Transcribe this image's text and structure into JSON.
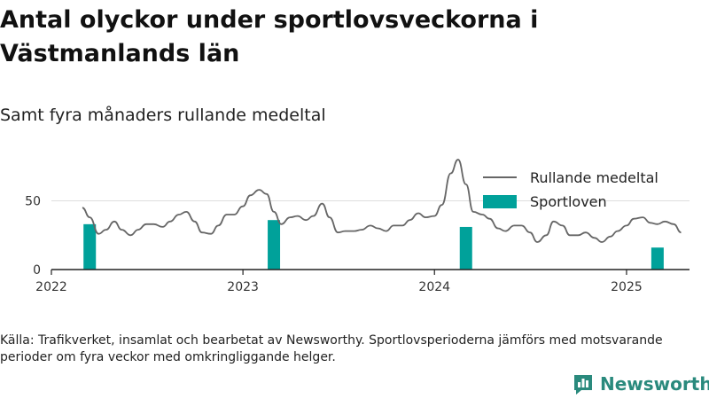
{
  "title": "Antal olyckor under sportlovsveckorna i Västmanlands län",
  "subtitle": "Samt fyra månaders rullande medeltal",
  "source": "Källa: Trafikverket, insamlat och bearbetat av Newsworthy. Sportlovsperioderna jämförs med motsvarande perioder om fyra veckor med omkringliggande helger.",
  "brand": {
    "name": "Newsworthy",
    "logo_icon": "bar-chart-logo-icon",
    "color": "#2a8a7d"
  },
  "chart_data": {
    "type": "bar+line",
    "xlim": [
      "2022-01-01",
      "2025-05-01"
    ],
    "ylim": [
      0,
      80
    ],
    "x_ticks": [
      "2022",
      "2023",
      "2024",
      "2025"
    ],
    "y_ticks": [
      0,
      50
    ],
    "grid": "horizontal",
    "legend_position": "top-right",
    "colors": {
      "line": "#666666",
      "bar": "#00a19a"
    },
    "series": [
      {
        "name": "Rullande medeltal",
        "type": "line",
        "points": [
          [
            "2022-03-01",
            45
          ],
          [
            "2022-03-15",
            38
          ],
          [
            "2022-04-01",
            26
          ],
          [
            "2022-04-15",
            29
          ],
          [
            "2022-05-01",
            35
          ],
          [
            "2022-05-15",
            29
          ],
          [
            "2022-06-01",
            25
          ],
          [
            "2022-06-15",
            29
          ],
          [
            "2022-07-01",
            33
          ],
          [
            "2022-07-15",
            33
          ],
          [
            "2022-08-01",
            31
          ],
          [
            "2022-08-15",
            35
          ],
          [
            "2022-09-01",
            40
          ],
          [
            "2022-09-15",
            42
          ],
          [
            "2022-10-01",
            35
          ],
          [
            "2022-10-15",
            27
          ],
          [
            "2022-11-01",
            26
          ],
          [
            "2022-11-15",
            32
          ],
          [
            "2022-12-01",
            40
          ],
          [
            "2022-12-15",
            40
          ],
          [
            "2023-01-01",
            46
          ],
          [
            "2023-01-15",
            54
          ],
          [
            "2023-02-01",
            58
          ],
          [
            "2023-02-15",
            55
          ],
          [
            "2023-03-01",
            42
          ],
          [
            "2023-03-15",
            33
          ],
          [
            "2023-04-01",
            38
          ],
          [
            "2023-04-15",
            39
          ],
          [
            "2023-05-01",
            36
          ],
          [
            "2023-05-15",
            39
          ],
          [
            "2023-06-01",
            48
          ],
          [
            "2023-06-15",
            38
          ],
          [
            "2023-07-01",
            27
          ],
          [
            "2023-07-15",
            28
          ],
          [
            "2023-08-01",
            28
          ],
          [
            "2023-08-15",
            29
          ],
          [
            "2023-09-01",
            32
          ],
          [
            "2023-09-15",
            30
          ],
          [
            "2023-10-01",
            28
          ],
          [
            "2023-10-15",
            32
          ],
          [
            "2023-11-01",
            32
          ],
          [
            "2023-11-15",
            36
          ],
          [
            "2023-12-01",
            41
          ],
          [
            "2023-12-15",
            38
          ],
          [
            "2024-01-01",
            39
          ],
          [
            "2024-01-15",
            47
          ],
          [
            "2024-02-01",
            70
          ],
          [
            "2024-02-15",
            80
          ],
          [
            "2024-03-01",
            62
          ],
          [
            "2024-03-15",
            42
          ],
          [
            "2024-04-01",
            40
          ],
          [
            "2024-04-15",
            37
          ],
          [
            "2024-05-01",
            30
          ],
          [
            "2024-05-15",
            28
          ],
          [
            "2024-06-01",
            32
          ],
          [
            "2024-06-15",
            32
          ],
          [
            "2024-07-01",
            27
          ],
          [
            "2024-07-15",
            20
          ],
          [
            "2024-08-01",
            25
          ],
          [
            "2024-08-15",
            35
          ],
          [
            "2024-09-01",
            32
          ],
          [
            "2024-09-15",
            25
          ],
          [
            "2024-10-01",
            25
          ],
          [
            "2024-10-15",
            27
          ],
          [
            "2024-11-01",
            23
          ],
          [
            "2024-11-15",
            20
          ],
          [
            "2024-12-01",
            24
          ],
          [
            "2024-12-15",
            28
          ],
          [
            "2025-01-01",
            32
          ],
          [
            "2025-01-15",
            37
          ],
          [
            "2025-02-01",
            38
          ],
          [
            "2025-02-15",
            34
          ],
          [
            "2025-03-01",
            33
          ],
          [
            "2025-03-15",
            35
          ],
          [
            "2025-04-01",
            33
          ],
          [
            "2025-04-15",
            27
          ]
        ]
      },
      {
        "name": "Sportloven",
        "type": "bar",
        "points": [
          [
            "2022-03-15",
            33
          ],
          [
            "2023-03-01",
            36
          ],
          [
            "2024-03-01",
            31
          ],
          [
            "2025-03-01",
            16
          ]
        ]
      }
    ]
  }
}
